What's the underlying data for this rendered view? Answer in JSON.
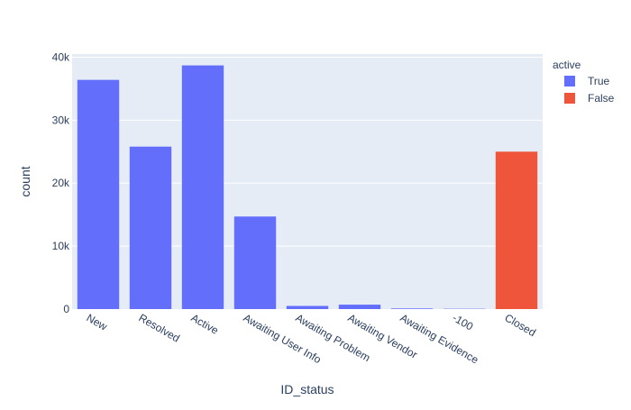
{
  "chart_data": {
    "type": "bar",
    "title": "",
    "xlabel": "ID_status",
    "ylabel": "count",
    "ylim": [
      0,
      40500
    ],
    "yticks": [
      0,
      10000,
      20000,
      30000,
      40000
    ],
    "ytick_labels": [
      "0",
      "10k",
      "20k",
      "30k",
      "40k"
    ],
    "categories": [
      "New",
      "Resolved",
      "Active",
      "Awaiting User Info",
      "Awaiting Problem",
      "Awaiting Vendor",
      "Awaiting Evidence",
      "-100",
      "Closed"
    ],
    "legend_title": "active",
    "legend_position": "top-right",
    "grid": true,
    "series": [
      {
        "name": "True",
        "color": "#636efa",
        "values": [
          36400,
          25800,
          38700,
          14700,
          500,
          700,
          100,
          50,
          null
        ]
      },
      {
        "name": "False",
        "color": "#ef553b",
        "values": [
          null,
          null,
          null,
          null,
          null,
          null,
          null,
          null,
          25000
        ]
      }
    ],
    "plot_background": "#e5ecf6"
  }
}
